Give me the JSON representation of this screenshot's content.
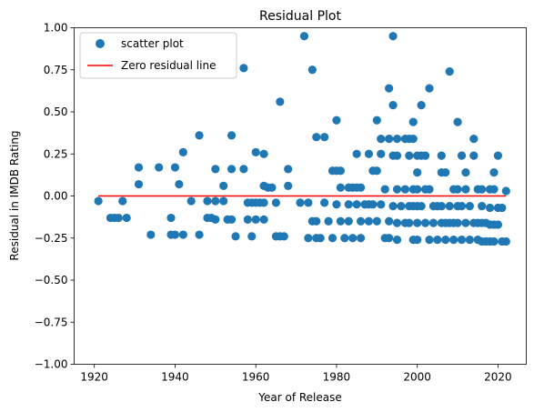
{
  "chart_data": {
    "type": "scatter",
    "title": "Residual Plot",
    "xlabel": "Year of Release",
    "ylabel": "Residual in IMDB Rating",
    "xlim": [
      1915,
      2027
    ],
    "ylim": [
      -1.0,
      1.0
    ],
    "xticks": [
      1920,
      1940,
      1960,
      1980,
      2000,
      2020
    ],
    "yticks": [
      -1.0,
      -0.75,
      -0.5,
      -0.25,
      0.0,
      0.25,
      0.5,
      0.75,
      1.0
    ],
    "xtick_labels": [
      "1920",
      "1940",
      "1960",
      "1980",
      "2000",
      "2020"
    ],
    "ytick_labels": [
      "−1.00",
      "−0.75",
      "−0.50",
      "−0.25",
      "0.00",
      "0.25",
      "0.50",
      "0.75",
      "1.00"
    ],
    "grid": false,
    "legend_position": "top-left",
    "series": [
      {
        "name": "scatter plot",
        "color": "#1f77b4",
        "points": [
          [
            1921,
            -0.03
          ],
          [
            1924,
            -0.13
          ],
          [
            1925,
            -0.13
          ],
          [
            1926,
            -0.13
          ],
          [
            1927,
            -0.03
          ],
          [
            1928,
            -0.13
          ],
          [
            1931,
            0.17
          ],
          [
            1931,
            0.07
          ],
          [
            1934,
            -0.23
          ],
          [
            1936,
            0.17
          ],
          [
            1939,
            -0.13
          ],
          [
            1939,
            -0.23
          ],
          [
            1940,
            0.17
          ],
          [
            1940,
            -0.23
          ],
          [
            1941,
            0.07
          ],
          [
            1942,
            0.26
          ],
          [
            1942,
            -0.23
          ],
          [
            1944,
            -0.03
          ],
          [
            1946,
            0.36
          ],
          [
            1946,
            -0.23
          ],
          [
            1948,
            -0.03
          ],
          [
            1948,
            -0.13
          ],
          [
            1949,
            -0.13
          ],
          [
            1950,
            0.16
          ],
          [
            1950,
            -0.03
          ],
          [
            1950,
            -0.14
          ],
          [
            1952,
            0.06
          ],
          [
            1952,
            -0.03
          ],
          [
            1953,
            -0.14
          ],
          [
            1954,
            0.36
          ],
          [
            1954,
            0.16
          ],
          [
            1954,
            -0.14
          ],
          [
            1955,
            -0.24
          ],
          [
            1957,
            0.76
          ],
          [
            1957,
            0.16
          ],
          [
            1958,
            -0.04
          ],
          [
            1958,
            -0.14
          ],
          [
            1959,
            -0.04
          ],
          [
            1959,
            -0.24
          ],
          [
            1960,
            0.26
          ],
          [
            1960,
            -0.04
          ],
          [
            1960,
            -0.14
          ],
          [
            1961,
            -0.04
          ],
          [
            1962,
            0.25
          ],
          [
            1962,
            0.06
          ],
          [
            1962,
            -0.04
          ],
          [
            1962,
            -0.14
          ],
          [
            1963,
            0.05
          ],
          [
            1964,
            0.05
          ],
          [
            1965,
            -0.04
          ],
          [
            1965,
            -0.24
          ],
          [
            1966,
            0.56
          ],
          [
            1966,
            -0.24
          ],
          [
            1967,
            -0.24
          ],
          [
            1968,
            0.16
          ],
          [
            1968,
            0.06
          ],
          [
            1971,
            -0.04
          ],
          [
            1972,
            0.95
          ],
          [
            1973,
            -0.04
          ],
          [
            1973,
            -0.25
          ],
          [
            1974,
            0.75
          ],
          [
            1974,
            -0.15
          ],
          [
            1975,
            0.35
          ],
          [
            1975,
            -0.15
          ],
          [
            1975,
            -0.25
          ],
          [
            1976,
            -0.25
          ],
          [
            1977,
            0.35
          ],
          [
            1977,
            -0.04
          ],
          [
            1978,
            -0.15
          ],
          [
            1979,
            0.15
          ],
          [
            1979,
            -0.25
          ],
          [
            1980,
            0.45
          ],
          [
            1980,
            0.15
          ],
          [
            1980,
            -0.05
          ],
          [
            1981,
            0.15
          ],
          [
            1981,
            0.05
          ],
          [
            1981,
            -0.15
          ],
          [
            1982,
            -0.25
          ],
          [
            1983,
            0.05
          ],
          [
            1983,
            -0.05
          ],
          [
            1983,
            -0.15
          ],
          [
            1984,
            0.05
          ],
          [
            1984,
            -0.25
          ],
          [
            1985,
            0.25
          ],
          [
            1985,
            0.05
          ],
          [
            1985,
            -0.05
          ],
          [
            1986,
            0.05
          ],
          [
            1986,
            -0.15
          ],
          [
            1986,
            -0.25
          ],
          [
            1987,
            -0.05
          ],
          [
            1988,
            0.25
          ],
          [
            1988,
            -0.05
          ],
          [
            1988,
            -0.15
          ],
          [
            1989,
            0.15
          ],
          [
            1989,
            -0.05
          ],
          [
            1990,
            0.45
          ],
          [
            1990,
            0.15
          ],
          [
            1990,
            -0.15
          ],
          [
            1991,
            0.34
          ],
          [
            1991,
            0.25
          ],
          [
            1991,
            -0.05
          ],
          [
            1992,
            0.04
          ],
          [
            1992,
            -0.25
          ],
          [
            1993,
            0.64
          ],
          [
            1993,
            0.34
          ],
          [
            1993,
            -0.15
          ],
          [
            1993,
            -0.25
          ],
          [
            1994,
            0.95
          ],
          [
            1994,
            0.54
          ],
          [
            1994,
            0.24
          ],
          [
            1994,
            -0.06
          ],
          [
            1995,
            0.34
          ],
          [
            1995,
            0.24
          ],
          [
            1995,
            0.04
          ],
          [
            1995,
            -0.16
          ],
          [
            1995,
            -0.26
          ],
          [
            1996,
            -0.06
          ],
          [
            1997,
            0.34
          ],
          [
            1997,
            0.04
          ],
          [
            1997,
            -0.16
          ],
          [
            1998,
            0.34
          ],
          [
            1998,
            0.24
          ],
          [
            1998,
            -0.06
          ],
          [
            1998,
            -0.16
          ],
          [
            1999,
            0.44
          ],
          [
            1999,
            0.34
          ],
          [
            1999,
            0.04
          ],
          [
            1999,
            -0.06
          ],
          [
            1999,
            -0.26
          ],
          [
            2000,
            0.24
          ],
          [
            2000,
            0.14
          ],
          [
            2000,
            0.04
          ],
          [
            2000,
            -0.06
          ],
          [
            2000,
            -0.16
          ],
          [
            2000,
            -0.26
          ],
          [
            2001,
            0.54
          ],
          [
            2001,
            0.24
          ],
          [
            2001,
            -0.06
          ],
          [
            2002,
            0.24
          ],
          [
            2002,
            0.04
          ],
          [
            2002,
            -0.16
          ],
          [
            2003,
            0.64
          ],
          [
            2003,
            0.04
          ],
          [
            2003,
            -0.26
          ],
          [
            2004,
            -0.06
          ],
          [
            2004,
            -0.16
          ],
          [
            2005,
            -0.06
          ],
          [
            2005,
            -0.26
          ],
          [
            2006,
            0.24
          ],
          [
            2006,
            0.14
          ],
          [
            2006,
            -0.06
          ],
          [
            2006,
            -0.16
          ],
          [
            2007,
            0.14
          ],
          [
            2007,
            -0.16
          ],
          [
            2007,
            -0.26
          ],
          [
            2008,
            0.74
          ],
          [
            2008,
            -0.06
          ],
          [
            2008,
            -0.16
          ],
          [
            2009,
            0.04
          ],
          [
            2009,
            -0.16
          ],
          [
            2009,
            -0.26
          ],
          [
            2010,
            0.44
          ],
          [
            2010,
            0.04
          ],
          [
            2010,
            -0.06
          ],
          [
            2010,
            -0.16
          ],
          [
            2011,
            0.24
          ],
          [
            2011,
            -0.06
          ],
          [
            2011,
            -0.26
          ],
          [
            2012,
            0.14
          ],
          [
            2012,
            0.04
          ],
          [
            2012,
            -0.16
          ],
          [
            2013,
            -0.06
          ],
          [
            2013,
            -0.26
          ],
          [
            2014,
            0.34
          ],
          [
            2014,
            0.24
          ],
          [
            2014,
            -0.16
          ],
          [
            2015,
            0.04
          ],
          [
            2015,
            -0.16
          ],
          [
            2015,
            -0.26
          ],
          [
            2016,
            0.04
          ],
          [
            2016,
            -0.06
          ],
          [
            2016,
            -0.16
          ],
          [
            2016,
            -0.27
          ],
          [
            2017,
            -0.16
          ],
          [
            2017,
            -0.27
          ],
          [
            2018,
            0.04
          ],
          [
            2018,
            -0.07
          ],
          [
            2018,
            -0.17
          ],
          [
            2018,
            -0.27
          ],
          [
            2019,
            0.14
          ],
          [
            2019,
            0.04
          ],
          [
            2019,
            -0.17
          ],
          [
            2019,
            -0.27
          ],
          [
            2020,
            0.24
          ],
          [
            2020,
            -0.07
          ],
          [
            2020,
            -0.17
          ],
          [
            2021,
            -0.07
          ],
          [
            2021,
            -0.27
          ],
          [
            2022,
            0.03
          ],
          [
            2022,
            -0.27
          ]
        ]
      },
      {
        "name": "Zero residual line",
        "color": "#ff0000",
        "type": "line",
        "points": [
          [
            1921,
            0.0
          ],
          [
            2022,
            0.0
          ]
        ]
      }
    ]
  }
}
